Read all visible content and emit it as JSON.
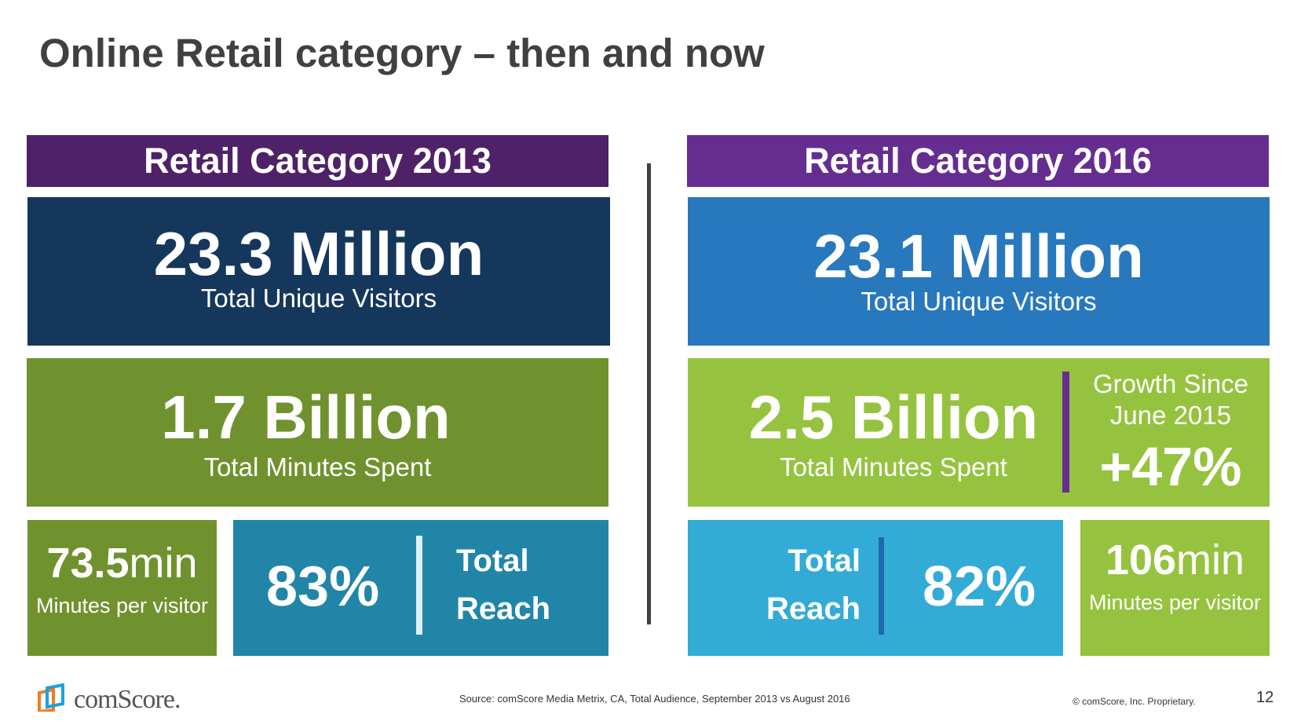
{
  "title": "Online Retail category – then and now",
  "left": {
    "header": "Retail Category 2013",
    "visitors_value": "23.3 Million",
    "visitors_label": "Total Unique Visitors",
    "minutes_value": "1.7 Billion",
    "minutes_label": "Total Minutes Spent",
    "per_visitor_number": "73.5",
    "per_visitor_unit": "min",
    "per_visitor_label": "Minutes per visitor",
    "reach_value": "83%",
    "reach_label_1": "Total",
    "reach_label_2": "Reach"
  },
  "right": {
    "header": "Retail Category 2016",
    "visitors_value": "23.1 Million",
    "visitors_label": "Total Unique Visitors",
    "minutes_value": "2.5 Billion",
    "minutes_label": "Total Minutes Spent",
    "growth_label_1": "Growth Since",
    "growth_label_2": "June 2015",
    "growth_value": "+47%",
    "reach_label_1": "Total",
    "reach_label_2": "Reach",
    "reach_value": "82%",
    "per_visitor_number": "106",
    "per_visitor_unit": "min",
    "per_visitor_label": "Minutes per visitor"
  },
  "footer": {
    "logo_text": "comScore.",
    "source": "Source: comScore Media Metrix, CA, Total Audience, September 2013 vs August 2016",
    "copyright": "© comScore, Inc. Proprietary.",
    "page_number": "12"
  },
  "colors": {
    "header_2013": "#4f2169",
    "header_2016": "#662d91",
    "visitors_2013": "#15375c",
    "visitors_2016": "#2878be",
    "minutes_2013": "#70922e",
    "minutes_2016": "#96c33f",
    "reach_2013": "#2185a8",
    "reach_2016": "#33abd7"
  }
}
